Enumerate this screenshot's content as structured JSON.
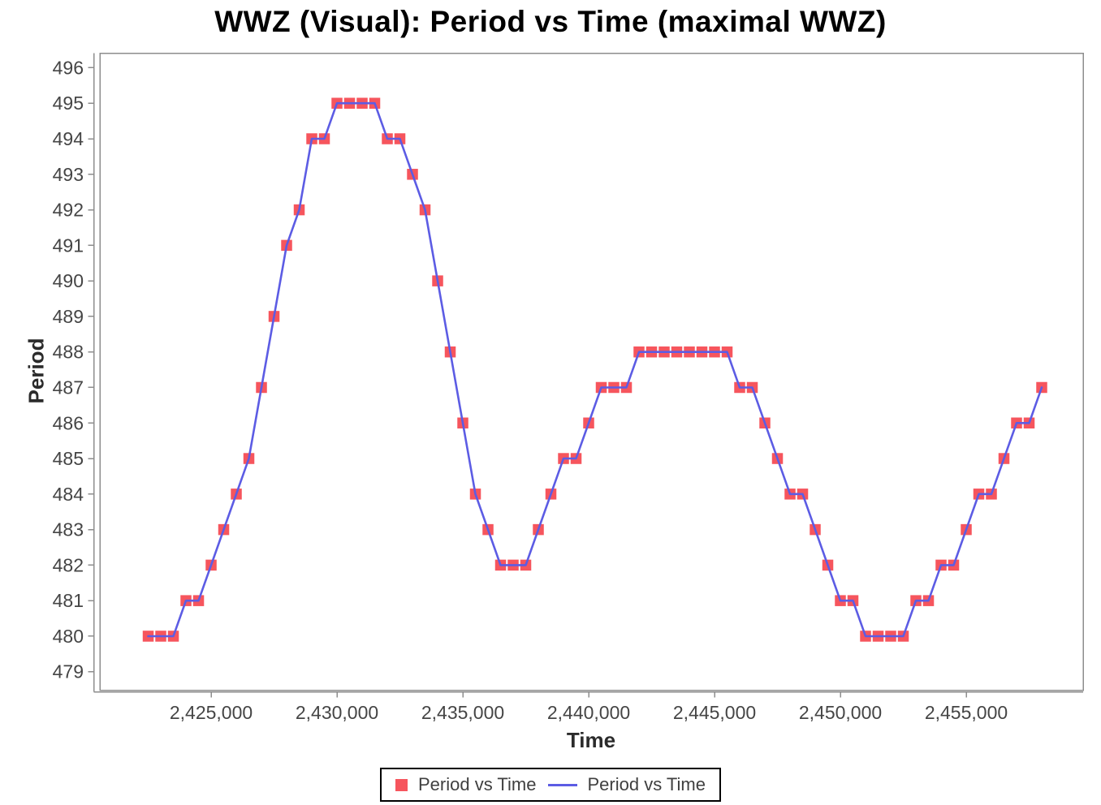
{
  "chart_data": {
    "type": "scatter",
    "title": "WWZ (Visual): Period vs Time (maximal WWZ)",
    "xlabel": "Time",
    "ylabel": "Period",
    "xlim": [
      2420580,
      2459645
    ],
    "ylim": [
      478.48,
      496.41
    ],
    "grid": false,
    "legend_position": "bottom",
    "x_ticks": [
      2425000,
      2430000,
      2435000,
      2440000,
      2445000,
      2450000,
      2455000
    ],
    "x_tick_labels": [
      "2,425,000",
      "2,430,000",
      "2,435,000",
      "2,440,000",
      "2,445,000",
      "2,450,000",
      "2,455,000"
    ],
    "y_ticks": [
      479,
      480,
      481,
      482,
      483,
      484,
      485,
      486,
      487,
      488,
      489,
      490,
      491,
      492,
      493,
      494,
      495,
      496
    ],
    "y_tick_labels": [
      "479",
      "480",
      "481",
      "482",
      "483",
      "484",
      "485",
      "486",
      "487",
      "488",
      "489",
      "490",
      "491",
      "492",
      "493",
      "494",
      "495",
      "496"
    ],
    "series": [
      {
        "name": "Period vs Time",
        "style": "markers",
        "marker": "square",
        "color": "#f6555d"
      },
      {
        "name": "Period vs Time",
        "style": "line",
        "color": "#5c5ce4"
      }
    ],
    "x": [
      2422500,
      2423000,
      2423500,
      2424000,
      2424500,
      2425000,
      2425500,
      2426000,
      2426500,
      2427000,
      2427500,
      2428000,
      2428500,
      2429000,
      2429500,
      2430000,
      2430500,
      2431000,
      2431500,
      2432000,
      2432500,
      2433000,
      2433500,
      2434000,
      2434500,
      2435000,
      2435500,
      2436000,
      2436500,
      2437000,
      2437500,
      2438000,
      2438500,
      2439000,
      2439500,
      2440000,
      2440500,
      2441000,
      2441500,
      2442000,
      2442500,
      2443000,
      2443500,
      2444000,
      2444500,
      2445000,
      2445500,
      2446000,
      2446500,
      2447000,
      2447500,
      2448000,
      2448500,
      2449000,
      2449500,
      2450000,
      2450500,
      2451000,
      2451500,
      2452000,
      2452500,
      2453000,
      2453500,
      2454000,
      2454500,
      2455000,
      2455500,
      2456000,
      2456500,
      2457000,
      2457500,
      2458000
    ],
    "y": [
      480,
      480,
      480,
      481,
      481,
      482,
      483,
      484,
      485,
      487,
      489,
      491,
      492,
      494,
      494,
      495,
      495,
      495,
      495,
      494,
      494,
      493,
      492,
      490,
      488,
      486,
      484,
      483,
      482,
      482,
      482,
      483,
      484,
      485,
      485,
      486,
      487,
      487,
      487,
      488,
      488,
      488,
      488,
      488,
      488,
      488,
      488,
      487,
      487,
      486,
      485,
      484,
      484,
      483,
      482,
      481,
      481,
      480,
      480,
      480,
      480,
      481,
      481,
      482,
      482,
      483,
      484,
      484,
      485,
      486,
      486,
      487
    ]
  },
  "legend": {
    "items": [
      {
        "label": "Period vs Time",
        "swatch": "square",
        "color": "#f6555d"
      },
      {
        "label": "Period vs Time",
        "swatch": "line",
        "color": "#5c5ce4"
      }
    ]
  },
  "colors": {
    "background": "#ffffff",
    "frame": "#8d8d8d",
    "tick_label": "#454545",
    "axis_title": "#2b2b2b",
    "title": "#000000",
    "marker_red": "#f6555d",
    "line_blue": "#5c5ce4",
    "legend_border": "#000000"
  }
}
